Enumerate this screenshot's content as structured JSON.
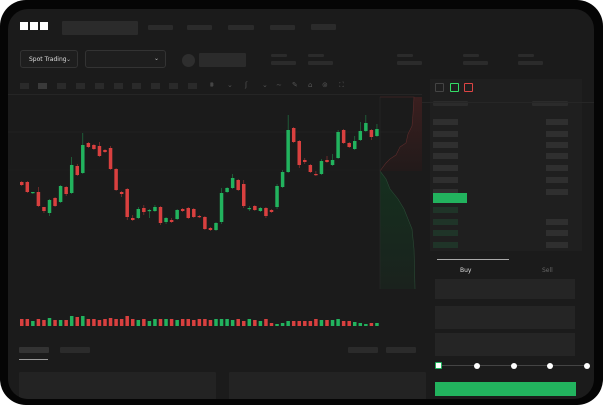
{
  "header": {
    "logo": "OKX"
  },
  "market_selector": {
    "label": "Spot Trading",
    "chevron": "chevron-down-icon"
  },
  "pair_selector": {
    "value": "",
    "chevron": "chevron-down-icon"
  },
  "order_panel": {
    "tabs": [
      {
        "label": "Buy",
        "active": true
      },
      {
        "label": "Sell",
        "active": false
      }
    ],
    "slider_percent": 0,
    "slider_stops": [
      0,
      25,
      50,
      75,
      100
    ]
  },
  "colors": {
    "up": "#22b35e",
    "down": "#d9403f",
    "background": "#1b1b1b",
    "primary_button": "#22b35e"
  },
  "chart_data": {
    "type": "candlestick",
    "candles": [
      [
        58,
        59,
        54,
        55
      ],
      [
        58,
        59,
        47,
        48
      ],
      [
        47,
        48,
        46,
        48
      ],
      [
        48,
        53,
        33,
        34
      ],
      [
        33,
        33,
        27,
        29
      ],
      [
        27,
        41,
        24,
        40
      ],
      [
        42,
        43,
        33,
        34
      ],
      [
        38,
        55,
        37,
        54
      ],
      [
        53,
        54,
        44,
        46
      ],
      [
        47,
        83,
        46,
        75
      ],
      [
        74,
        76,
        64,
        65
      ],
      [
        67,
        107,
        66,
        95
      ],
      [
        97,
        98,
        92,
        93
      ],
      [
        95,
        96,
        90,
        91
      ],
      [
        94,
        98,
        83,
        84
      ],
      [
        90,
        91,
        87,
        88
      ],
      [
        92,
        94,
        70,
        71
      ],
      [
        71,
        72,
        49,
        50
      ],
      [
        48,
        49,
        43,
        46
      ],
      [
        51,
        52,
        20,
        23
      ],
      [
        22,
        25,
        19,
        20
      ],
      [
        22,
        33,
        21,
        31
      ],
      [
        32,
        35,
        25,
        28
      ],
      [
        29,
        31,
        22,
        30
      ],
      [
        29,
        35,
        28,
        33
      ],
      [
        33,
        34,
        15,
        17
      ],
      [
        18,
        23,
        16,
        22
      ],
      [
        20,
        22,
        17,
        18
      ],
      [
        21,
        31,
        20,
        30
      ],
      [
        31,
        32,
        28,
        29
      ],
      [
        32,
        33,
        21,
        22
      ],
      [
        31,
        32,
        22,
        23
      ],
      [
        24,
        25,
        22,
        23
      ],
      [
        23,
        24,
        10,
        11
      ],
      [
        12,
        13,
        9,
        10
      ],
      [
        10,
        18,
        9,
        17
      ],
      [
        18,
        52,
        16,
        47
      ],
      [
        48,
        53,
        47,
        52
      ],
      [
        52,
        66,
        51,
        62
      ],
      [
        60,
        61,
        49,
        50
      ],
      [
        56,
        60,
        32,
        34
      ],
      [
        31,
        34,
        29,
        32
      ],
      [
        34,
        35,
        29,
        30
      ],
      [
        29,
        33,
        28,
        32
      ],
      [
        32,
        33,
        22,
        24
      ],
      [
        30,
        31,
        27,
        28
      ],
      [
        33,
        56,
        31,
        54
      ],
      [
        53,
        70,
        52,
        68
      ],
      [
        68,
        125,
        67,
        110
      ],
      [
        112,
        113,
        97,
        98
      ],
      [
        99,
        100,
        72,
        75
      ],
      [
        80,
        82,
        76,
        78
      ],
      [
        75,
        76,
        67,
        68
      ],
      [
        66,
        69,
        64,
        65
      ],
      [
        66,
        81,
        65,
        79
      ],
      [
        80,
        84,
        77,
        78
      ],
      [
        75,
        86,
        74,
        80
      ],
      [
        82,
        110,
        81,
        108
      ],
      [
        110,
        111,
        96,
        97
      ],
      [
        97,
        98,
        92,
        93
      ],
      [
        91,
        104,
        90,
        99
      ],
      [
        100,
        118,
        99,
        109
      ],
      [
        109,
        125,
        108,
        117
      ],
      [
        110,
        111,
        100,
        103
      ],
      [
        104,
        116,
        103,
        111
      ]
    ],
    "volume": [
      7,
      7,
      5,
      7,
      6,
      8,
      6,
      6,
      6,
      10,
      9,
      10,
      7,
      7,
      6,
      7,
      8,
      7,
      7,
      10,
      7,
      6,
      7,
      5,
      7,
      7,
      7,
      7,
      6,
      7,
      7,
      6,
      7,
      7,
      6,
      7,
      7,
      7,
      6,
      7,
      5,
      7,
      6,
      5,
      7,
      3,
      2,
      3,
      5,
      5,
      5,
      5,
      5,
      7,
      6,
      6,
      6,
      7,
      5,
      5,
      4,
      3,
      2,
      3,
      3
    ],
    "price_range": [
      0,
      130
    ],
    "grid": false
  }
}
